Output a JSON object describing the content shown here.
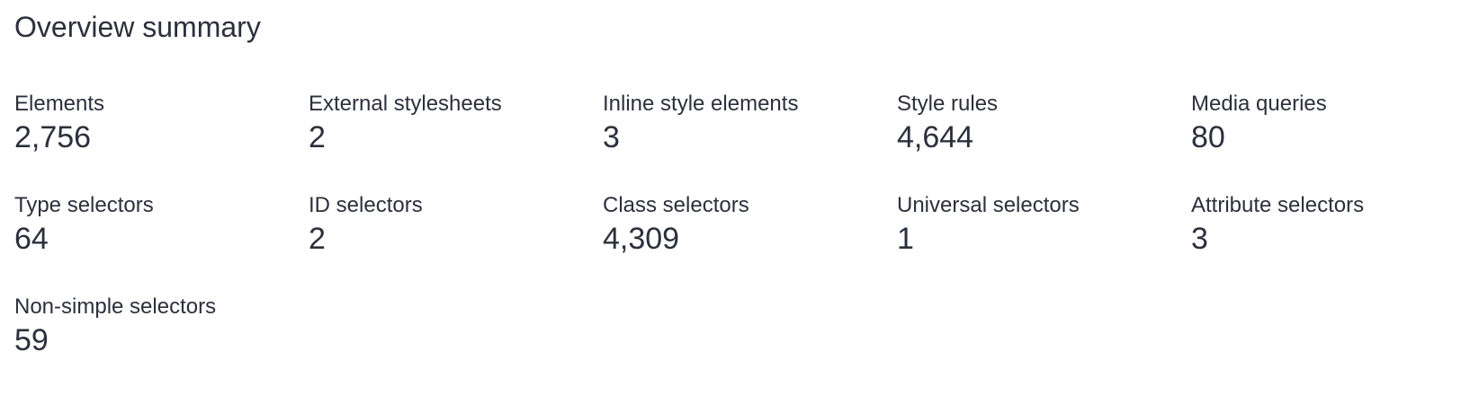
{
  "title": "Overview summary",
  "stats": [
    {
      "label": "Elements",
      "value": "2,756"
    },
    {
      "label": "External stylesheets",
      "value": "2"
    },
    {
      "label": "Inline style elements",
      "value": "3"
    },
    {
      "label": "Style rules",
      "value": "4,644"
    },
    {
      "label": "Media queries",
      "value": "80"
    },
    {
      "label": "Type selectors",
      "value": "64"
    },
    {
      "label": "ID selectors",
      "value": "2"
    },
    {
      "label": "Class selectors",
      "value": "4,309"
    },
    {
      "label": "Universal selectors",
      "value": "1"
    },
    {
      "label": "Attribute selectors",
      "value": "3"
    },
    {
      "label": "Non-simple selectors",
      "value": "59"
    }
  ]
}
